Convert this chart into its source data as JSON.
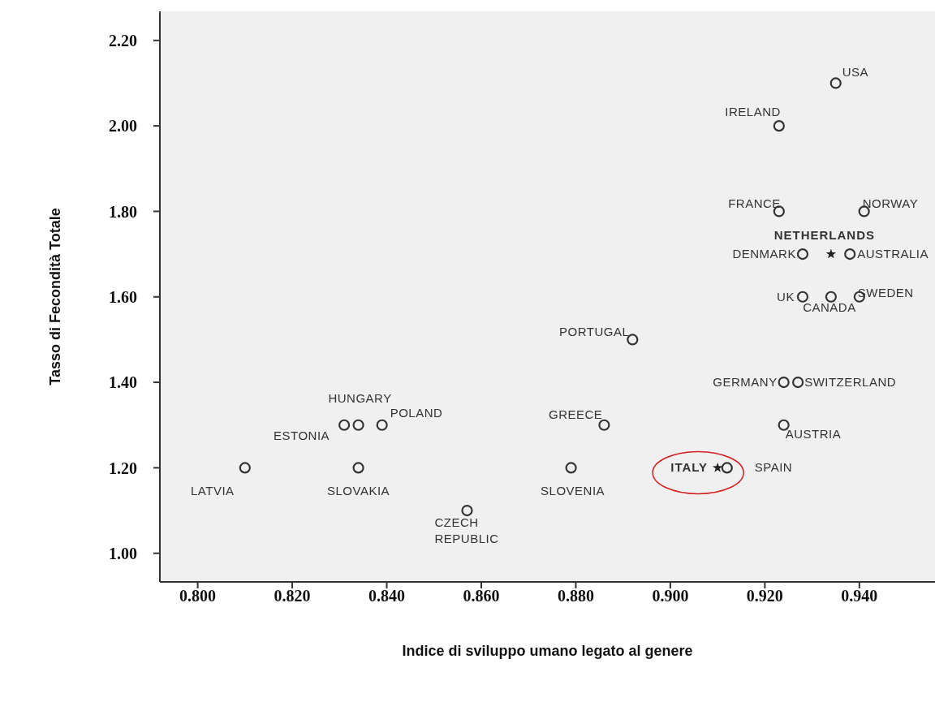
{
  "chart_data": {
    "type": "scatter",
    "xlabel": "Indice di sviluppo umano legato al genere",
    "ylabel": "Tasso di Fecondità Totale",
    "xlim": [
      0.792,
      0.956
    ],
    "ylim": [
      0.933,
      2.268
    ],
    "xticks": [
      {
        "value": 0.8,
        "label": "0.800"
      },
      {
        "value": 0.82,
        "label": "0.820"
      },
      {
        "value": 0.84,
        "label": "0.840"
      },
      {
        "value": 0.86,
        "label": "0.860"
      },
      {
        "value": 0.88,
        "label": "0.880"
      },
      {
        "value": 0.9,
        "label": "0.900"
      },
      {
        "value": 0.92,
        "label": "0.920"
      },
      {
        "value": 0.94,
        "label": "0.940"
      }
    ],
    "yticks": [
      {
        "value": 1.0,
        "label": "1.00"
      },
      {
        "value": 1.2,
        "label": "1.20"
      },
      {
        "value": 1.4,
        "label": "1.40"
      },
      {
        "value": 1.6,
        "label": "1.60"
      },
      {
        "value": 1.8,
        "label": "1.80"
      },
      {
        "value": 2.0,
        "label": "2.00"
      },
      {
        "value": 2.2,
        "label": "2.20"
      }
    ],
    "grid": false,
    "legend": false,
    "series": [
      {
        "color": "#333333",
        "marker": "circle",
        "x": [
          0.935,
          0.923,
          0.923,
          0.941,
          0.928,
          0.938,
          0.928,
          0.934,
          0.94,
          0.892,
          0.924,
          0.927,
          0.924,
          0.886,
          0.831,
          0.834,
          0.839,
          0.81,
          0.834,
          0.879,
          0.857,
          0.912
        ],
        "values": [
          2.1,
          2.0,
          1.8,
          1.8,
          1.7,
          1.7,
          1.6,
          1.6,
          1.6,
          1.5,
          1.4,
          1.4,
          1.3,
          1.3,
          1.3,
          1.3,
          1.3,
          1.2,
          1.2,
          1.2,
          1.1,
          1.2
        ]
      },
      {
        "color": "#222222",
        "marker": "star",
        "x": [
          0.934,
          0.91
        ],
        "values": [
          1.7,
          1.2
        ]
      }
    ],
    "annotations": [
      {
        "text": "USA",
        "x": 0.935,
        "y": 2.1
      },
      {
        "text": "IRELAND",
        "x": 0.923,
        "y": 2.0
      },
      {
        "text": "FRANCE",
        "x": 0.923,
        "y": 1.8
      },
      {
        "text": "NORWAY",
        "x": 0.941,
        "y": 1.8
      },
      {
        "text": "NETHERLANDS",
        "x": 0.934,
        "y": 1.7
      },
      {
        "text": "DENMARK",
        "x": 0.928,
        "y": 1.7
      },
      {
        "text": "AUSTRALIA",
        "x": 0.938,
        "y": 1.7
      },
      {
        "text": "UK",
        "x": 0.928,
        "y": 1.6
      },
      {
        "text": "CANADA",
        "x": 0.934,
        "y": 1.6
      },
      {
        "text": "SWEDEN",
        "x": 0.94,
        "y": 1.6
      },
      {
        "text": "PORTUGAL",
        "x": 0.892,
        "y": 1.5
      },
      {
        "text": "GERMANY",
        "x": 0.924,
        "y": 1.4
      },
      {
        "text": "SWITZERLAND",
        "x": 0.927,
        "y": 1.4
      },
      {
        "text": "AUSTRIA",
        "x": 0.924,
        "y": 1.3
      },
      {
        "text": "GREECE",
        "x": 0.886,
        "y": 1.3
      },
      {
        "text": "ESTONIA",
        "x": 0.831,
        "y": 1.3
      },
      {
        "text": "HUNGARY",
        "x": 0.834,
        "y": 1.3
      },
      {
        "text": "POLAND",
        "x": 0.839,
        "y": 1.3
      },
      {
        "text": "LATVIA",
        "x": 0.81,
        "y": 1.2
      },
      {
        "text": "SLOVAKIA",
        "x": 0.834,
        "y": 1.2
      },
      {
        "text": "SLOVENIA",
        "x": 0.879,
        "y": 1.2
      },
      {
        "text": "CZECH REPUBLIC",
        "x": 0.857,
        "y": 1.1
      },
      {
        "text": "ITALY",
        "x": 0.91,
        "y": 1.2
      },
      {
        "text": "SPAIN",
        "x": 0.912,
        "y": 1.2
      }
    ]
  }
}
